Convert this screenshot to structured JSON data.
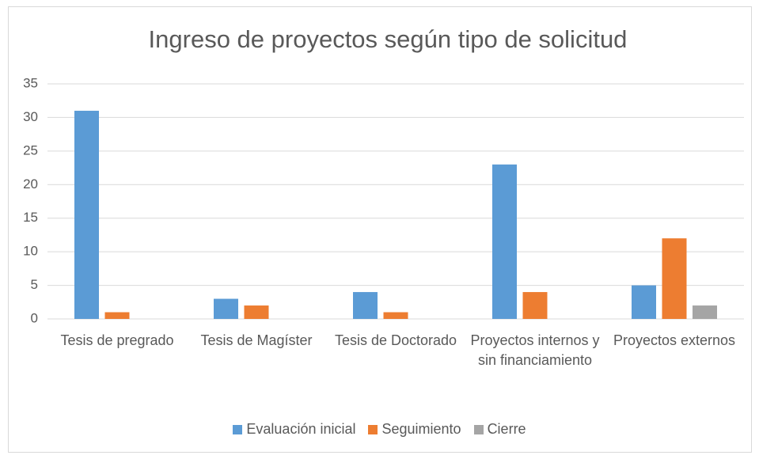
{
  "chart_data": {
    "type": "bar",
    "title": "Ingreso de proyectos según tipo de solicitud",
    "categories": [
      "Tesis de pregrado",
      "Tesis de Magíster",
      "Tesis de Doctorado",
      "Proyectos internos y sin financiamiento",
      "Proyectos externos"
    ],
    "series": [
      {
        "name": "Evaluación inicial",
        "color": "#5b9bd5",
        "values": [
          31,
          3,
          4,
          23,
          5
        ]
      },
      {
        "name": "Seguimiento",
        "color": "#ed7d31",
        "values": [
          1,
          2,
          1,
          4,
          12
        ]
      },
      {
        "name": "Cierre",
        "color": "#a5a5a5",
        "values": [
          0,
          0,
          0,
          0,
          2
        ]
      }
    ],
    "ylim": [
      0,
      35
    ],
    "yticks": [
      0,
      5,
      10,
      15,
      20,
      25,
      30,
      35
    ],
    "grid": true,
    "legend": "bottom"
  }
}
